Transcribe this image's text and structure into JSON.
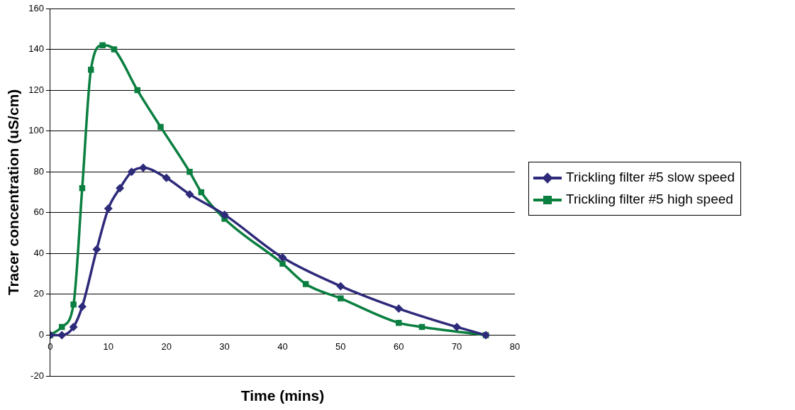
{
  "chart_data": {
    "type": "line",
    "xlabel": "Time (mins)",
    "ylabel": "Tracer concentration (uS/cm)",
    "xlim": [
      0,
      80
    ],
    "xticks": [
      0,
      10,
      20,
      30,
      40,
      50,
      60,
      70,
      80
    ],
    "ylim": [
      -20,
      160
    ],
    "yticks": [
      -20,
      0,
      20,
      40,
      60,
      80,
      100,
      120,
      140,
      160
    ],
    "grid": "y",
    "legend": "right",
    "line_style": "solid",
    "series": [
      {
        "name": "Trickling filter #5 slow speed",
        "color": "#2e2a7a",
        "marker": "diamond",
        "x": [
          0,
          2,
          4,
          5.5,
          8,
          10,
          12,
          14,
          16,
          20,
          24,
          30,
          40,
          50,
          60,
          70,
          75
        ],
        "values": [
          0,
          0,
          4,
          14,
          42,
          62,
          72,
          80,
          82,
          77,
          69,
          59,
          38,
          24,
          13,
          4,
          0
        ]
      },
      {
        "name": "Trickling filter #5 high speed",
        "color": "#0a7f40",
        "marker": "square",
        "x": [
          0,
          2,
          4,
          5.5,
          7,
          9,
          11,
          15,
          19,
          24,
          26,
          30,
          40,
          44,
          50,
          60,
          64,
          75
        ],
        "values": [
          0,
          4,
          15,
          72,
          130,
          142,
          140,
          120,
          102,
          80,
          70,
          57,
          35,
          25,
          18,
          6,
          4,
          0
        ]
      }
    ]
  }
}
